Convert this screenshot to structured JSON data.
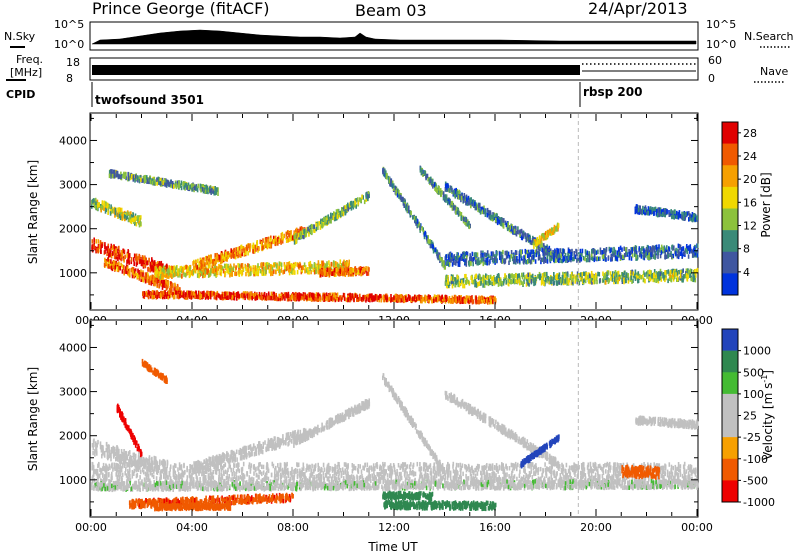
{
  "header": {
    "station": "Prince George (fitACF)",
    "beam": "Beam 03",
    "date": "24/Apr/2013"
  },
  "strip": {
    "nsky_label": "N.Sky",
    "nsky_ticks": [
      "10^5",
      "10^0"
    ],
    "nsearch_label": "N.Search",
    "nsearch_ticks": [
      "10^5",
      "10^0"
    ],
    "freq_label_1": "Freq.",
    "freq_label_2": "[MHz]",
    "freq_ticks": [
      "18",
      "8"
    ],
    "nave_label": "Nave",
    "nave_ticks": [
      "60",
      "0"
    ],
    "cpid_label": "CPID",
    "programs": [
      {
        "name": "twofsound 3501",
        "start_hour": 0
      },
      {
        "name": "rbsp 200",
        "start_hour": 19.3
      }
    ]
  },
  "colors": {
    "power": [
      "#0033dd",
      "#3f56a0",
      "#3a8a78",
      "#8cc23c",
      "#f0d800",
      "#f6a000",
      "#f05a00",
      "#e00000"
    ],
    "velocity": [
      "#ee0000",
      "#f05a00",
      "#f7a000",
      "#c0c0c0",
      "#c0c0c0",
      "#44bb33",
      "#2f8850",
      "#2244bb"
    ]
  },
  "chart_data": [
    {
      "type": "heatmap",
      "name": "power",
      "xlabel": "",
      "ylabel": "Slant Range [km]",
      "xlim": [
        0,
        24
      ],
      "ylim": [
        180,
        4600
      ],
      "x_ticks": [
        "00:00",
        "04:00",
        "08:00",
        "12:00",
        "16:00",
        "20:00",
        "00:00"
      ],
      "y_ticks": [
        1000,
        2000,
        3000,
        4000
      ],
      "colorbar_label": "Power [dB]",
      "colorbar_ticks": [
        "28",
        "24",
        "20",
        "16",
        "12",
        "8",
        "4"
      ],
      "colorbar_range": [
        0,
        30
      ],
      "program_change_hour": 19.3,
      "bands": [
        {
          "t0": 0.0,
          "t1": 3.0,
          "r0": 1700,
          "r1": 1100,
          "w": 260,
          "p": 27
        },
        {
          "t0": 0.0,
          "t1": 2.0,
          "r0": 2650,
          "r1": 2200,
          "w": 200,
          "p": 15
        },
        {
          "t0": 0.5,
          "t1": 3.5,
          "r0": 1300,
          "r1": 650,
          "w": 180,
          "p": 24
        },
        {
          "t0": 2.0,
          "t1": 11.5,
          "r0": 560,
          "r1": 480,
          "w": 120,
          "p": 26
        },
        {
          "t0": 2.5,
          "t1": 10.2,
          "r0": 1050,
          "r1": 1200,
          "w": 230,
          "p": 18
        },
        {
          "t0": 4.0,
          "t1": 8.5,
          "r0": 1200,
          "r1": 2000,
          "w": 200,
          "p": 22
        },
        {
          "t0": 8.0,
          "t1": 11.0,
          "r0": 1800,
          "r1": 2800,
          "w": 160,
          "p": 12
        },
        {
          "t0": 0.7,
          "t1": 5.0,
          "r0": 3300,
          "r1": 2900,
          "w": 120,
          "p": 10
        },
        {
          "t0": 11.5,
          "t1": 14.0,
          "r0": 3400,
          "r1": 1200,
          "w": 140,
          "p": 8
        },
        {
          "t0": 14.0,
          "t1": 18.5,
          "r0": 3000,
          "r1": 1400,
          "w": 160,
          "p": 7
        },
        {
          "t0": 13.0,
          "t1": 15.0,
          "r0": 3400,
          "r1": 2100,
          "w": 120,
          "p": 9
        },
        {
          "t0": 14.0,
          "t1": 24.0,
          "r0": 850,
          "r1": 1000,
          "w": 230,
          "p": 13
        },
        {
          "t0": 14.0,
          "t1": 24.0,
          "r0": 1350,
          "r1": 1550,
          "w": 260,
          "p": 6
        },
        {
          "t0": 11.5,
          "t1": 16.0,
          "r0": 480,
          "r1": 430,
          "w": 110,
          "p": 24
        },
        {
          "t0": 21.5,
          "t1": 24.0,
          "r0": 2500,
          "r1": 2300,
          "w": 140,
          "p": 5
        },
        {
          "t0": 17.5,
          "t1": 18.5,
          "r0": 1700,
          "r1": 2100,
          "w": 120,
          "p": 17
        },
        {
          "t0": 9.0,
          "t1": 11.0,
          "r0": 1050,
          "r1": 1100,
          "w": 140,
          "p": 24
        }
      ]
    },
    {
      "type": "heatmap",
      "name": "velocity",
      "xlabel": "Time UT",
      "ylabel": "Slant Range [km]",
      "xlim": [
        0,
        24
      ],
      "ylim": [
        180,
        4600
      ],
      "x_ticks": [
        "00:00",
        "04:00",
        "08:00",
        "12:00",
        "16:00",
        "20:00",
        "00:00"
      ],
      "y_ticks": [
        1000,
        2000,
        3000,
        4000
      ],
      "colorbar_label": "Velocity [m s",
      "colorbar_label_sup": "-1",
      "colorbar_label_end": "]",
      "colorbar_ticks": [
        "1000",
        "500",
        "100",
        "25",
        "-25",
        "-100",
        "-500",
        "-1000"
      ],
      "colorbar_range": [
        -1000,
        1000
      ],
      "program_change_hour": 19.3,
      "bands": [
        {
          "t0": 0.0,
          "t1": 24.0,
          "r0": 1200,
          "r1": 1200,
          "w": 420,
          "v": 0
        },
        {
          "t0": 0.0,
          "t1": 24.0,
          "r0": 900,
          "r1": 950,
          "w": 160,
          "v": 10
        },
        {
          "t0": 0.0,
          "t1": 3.0,
          "r0": 1800,
          "r1": 1300,
          "w": 320,
          "v": 5
        },
        {
          "t0": 4.0,
          "t1": 8.5,
          "r0": 1300,
          "r1": 2100,
          "w": 230,
          "v": 0
        },
        {
          "t0": 8.0,
          "t1": 11.0,
          "r0": 1900,
          "r1": 2800,
          "w": 160,
          "v": 0
        },
        {
          "t0": 11.5,
          "t1": 14.0,
          "r0": 3400,
          "r1": 1200,
          "w": 140,
          "v": 0
        },
        {
          "t0": 14.0,
          "t1": 18.5,
          "r0": 3000,
          "r1": 1400,
          "w": 160,
          "v": 0
        },
        {
          "t0": 1.0,
          "t1": 2.0,
          "r0": 2700,
          "r1": 1600,
          "w": 140,
          "v": -900
        },
        {
          "t0": 1.5,
          "t1": 8.0,
          "r0": 500,
          "r1": 650,
          "w": 150,
          "v": -420
        },
        {
          "t0": 2.5,
          "t1": 5.5,
          "r0": 430,
          "r1": 440,
          "w": 90,
          "v": -300
        },
        {
          "t0": 11.5,
          "t1": 16.0,
          "r0": 480,
          "r1": 460,
          "w": 140,
          "v": 350
        },
        {
          "t0": 11.5,
          "t1": 13.5,
          "r0": 700,
          "r1": 680,
          "w": 120,
          "v": 160
        },
        {
          "t0": 17.0,
          "t1": 18.5,
          "r0": 1400,
          "r1": 2000,
          "w": 100,
          "v": 800
        },
        {
          "t0": 21.0,
          "t1": 22.5,
          "r0": 1250,
          "r1": 1200,
          "w": 230,
          "v": -350
        },
        {
          "t0": 21.5,
          "t1": 24.0,
          "r0": 2400,
          "r1": 2300,
          "w": 140,
          "v": 0
        },
        {
          "t0": 2.0,
          "t1": 3.0,
          "r0": 3700,
          "r1": 3300,
          "w": 100,
          "v": -150
        }
      ]
    }
  ]
}
